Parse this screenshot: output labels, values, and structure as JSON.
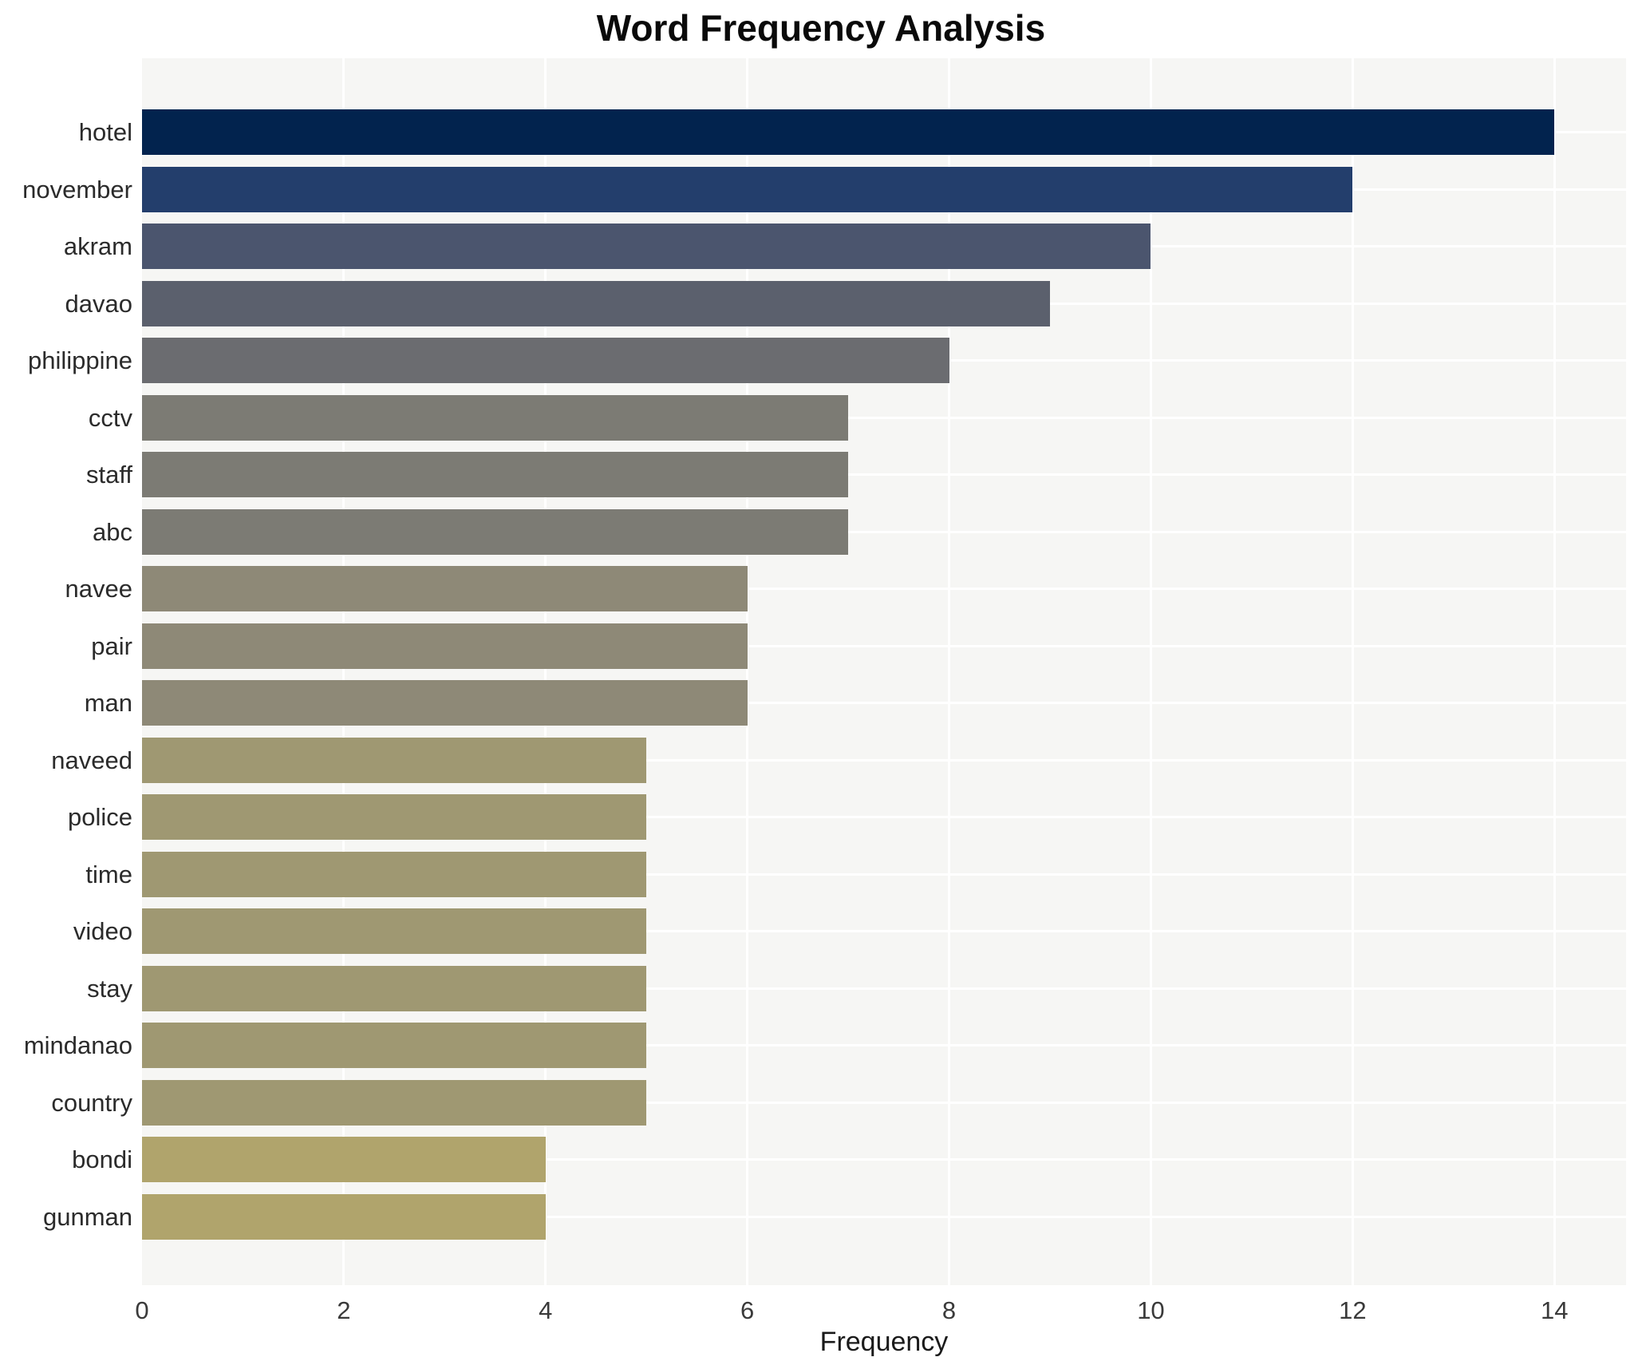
{
  "title": "Word Frequency Analysis",
  "chart_data": {
    "type": "bar",
    "orientation": "horizontal",
    "title": "Word Frequency Analysis",
    "xlabel": "Frequency",
    "ylabel": "",
    "categories": [
      "hotel",
      "november",
      "akram",
      "davao",
      "philippine",
      "cctv",
      "staff",
      "abc",
      "navee",
      "pair",
      "man",
      "naveed",
      "police",
      "time",
      "video",
      "stay",
      "mindanao",
      "country",
      "bondi",
      "gunman"
    ],
    "values": [
      14,
      12,
      10,
      9,
      8,
      7,
      7,
      7,
      6,
      6,
      6,
      5,
      5,
      5,
      5,
      5,
      5,
      5,
      4,
      4
    ],
    "bar_colors": [
      "#02234e",
      "#233e6c",
      "#4b556e",
      "#5b606d",
      "#6b6c70",
      "#7c7b74",
      "#7c7b74",
      "#7c7b74",
      "#8e8977",
      "#8e8977",
      "#8e8977",
      "#9f9872",
      "#9f9872",
      "#9f9872",
      "#9f9872",
      "#9f9872",
      "#9f9872",
      "#9f9872",
      "#b0a46c",
      "#b0a46c"
    ],
    "x_ticks": [
      0,
      2,
      4,
      6,
      8,
      10,
      12,
      14
    ],
    "xlim": [
      0,
      14.71
    ],
    "grid": true,
    "legend": "none",
    "plot_bg": "#f6f6f4",
    "grid_color": "#ffffff"
  }
}
